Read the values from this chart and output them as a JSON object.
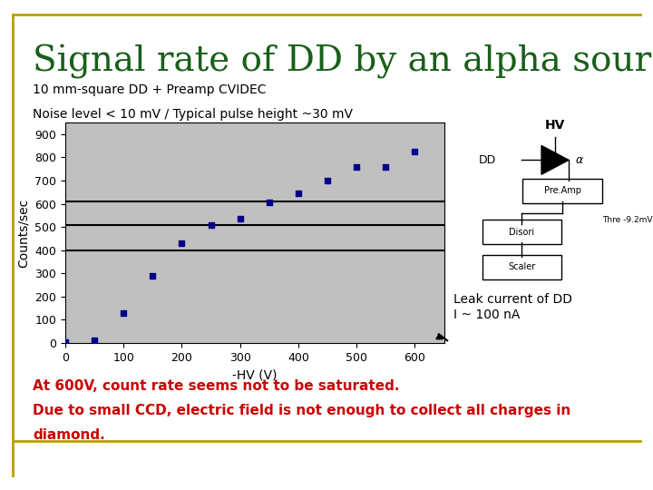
{
  "title": "Signal rate of DD by an alpha source.",
  "title_color": "#1a5e1a",
  "title_fontsize": 28,
  "subtitle1": "10 mm-square DD + Preamp CVIDEC",
  "subtitle2": "Noise level < 10 mV / Typical pulse height ~30 mV",
  "subtitle_fontsize": 10,
  "xlabel": "-HV (V)",
  "ylabel": "Counts/sec",
  "xlim": [
    0,
    650
  ],
  "ylim": [
    0,
    950
  ],
  "xticks": [
    0,
    100,
    200,
    300,
    400,
    500,
    600
  ],
  "yticks": [
    0,
    100,
    200,
    300,
    400,
    500,
    600,
    700,
    800,
    900
  ],
  "x_data": [
    0,
    50,
    100,
    150,
    200,
    250,
    300,
    350,
    400,
    450,
    500,
    550,
    600
  ],
  "y_data": [
    5,
    10,
    130,
    290,
    430,
    510,
    535,
    605,
    645,
    700,
    760,
    760,
    825
  ],
  "data_color": "#00008B",
  "plot_bg": "#C0C0C0",
  "hlines": [
    400,
    510,
    610
  ],
  "hline_color": "#000000",
  "annotation_text": "Leak current of DD\nI ~ 100 nA",
  "annotation_fontsize": 10,
  "bottom_text1": "At 600V, count rate seems not to be saturated.",
  "bottom_text2": "Due to small CCD, electric field is not enough to collect all charges in",
  "bottom_text3": "diamond.",
  "bottom_text_color": "#cc0000",
  "bottom_fontsize": 11,
  "border_color": "#b8a000",
  "fig_bg": "#ffffff"
}
